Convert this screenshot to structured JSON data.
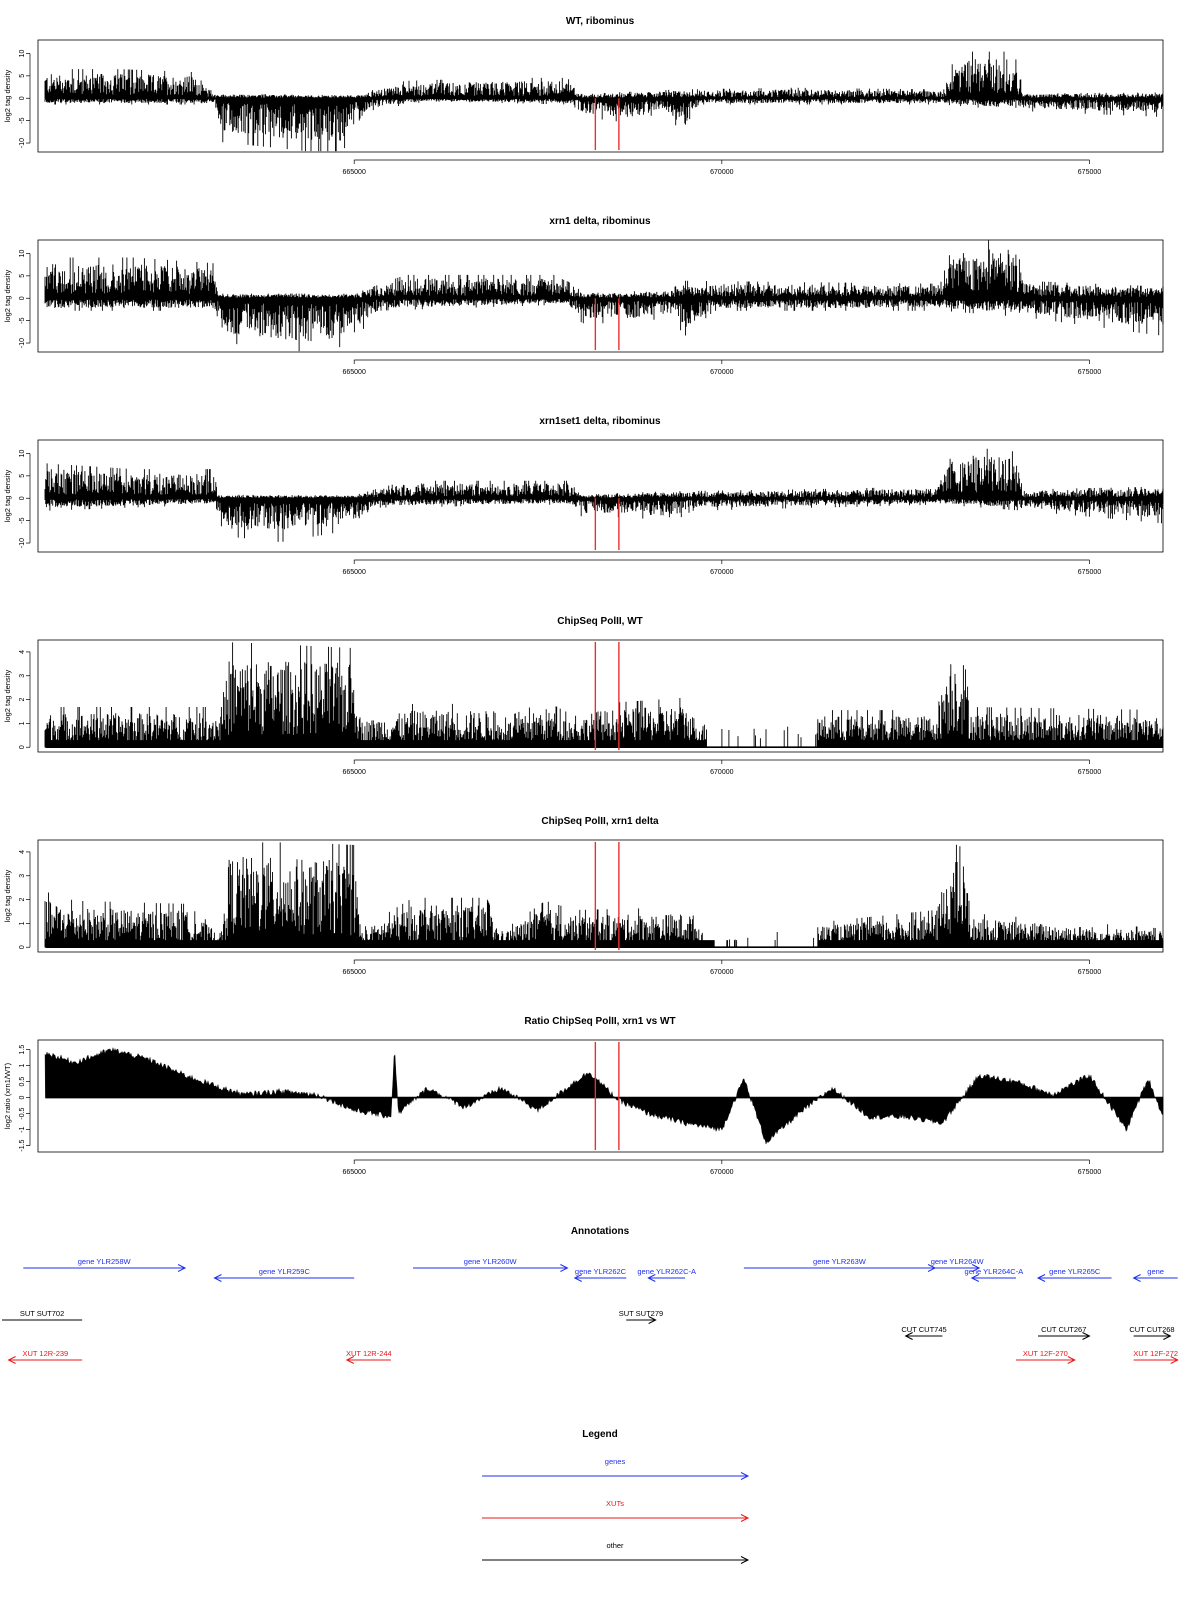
{
  "colors": {
    "signal": "#000000",
    "marker": "#e8312f",
    "gene": "#1f2ff0",
    "xut": "#e8181a",
    "other": "#000000"
  },
  "shared_axis": {
    "xlim": [
      660700,
      676000
    ],
    "x_ticks": [
      665000,
      670000,
      675000
    ],
    "x_tick_labels": [
      "665000",
      "670000",
      "675000"
    ],
    "marker_positions": [
      668280,
      668600
    ]
  },
  "chart_data": [
    {
      "type": "bar",
      "title": "WT, ribominus",
      "ylabel": "log2 tag density",
      "ylim": [
        -12,
        13
      ],
      "y_ticks": [
        -10,
        -5,
        0,
        5,
        10
      ],
      "y_tick_labels": [
        "-10",
        "-5",
        "0",
        "5",
        "10"
      ],
      "x_range": [
        660800,
        676000
      ],
      "profile_positive": [
        [
          660800,
          5
        ],
        [
          661800,
          5
        ],
        [
          662800,
          4.5
        ],
        [
          663100,
          0.8
        ],
        [
          665000,
          0.5
        ],
        [
          665700,
          3
        ],
        [
          667200,
          3.5
        ],
        [
          667900,
          3.5
        ],
        [
          668100,
          0.7
        ],
        [
          669400,
          1.5
        ],
        [
          671000,
          1.8
        ],
        [
          673000,
          1.5
        ],
        [
          673200,
          8
        ],
        [
          674000,
          8
        ],
        [
          674100,
          0.8
        ],
        [
          676000,
          1
        ]
      ],
      "profile_negative": [
        [
          660800,
          -1
        ],
        [
          663100,
          -1
        ],
        [
          663200,
          -7
        ],
        [
          664000,
          -8
        ],
        [
          664800,
          -9
        ],
        [
          665000,
          -6
        ],
        [
          665200,
          -2
        ],
        [
          666000,
          -0.5
        ],
        [
          667900,
          -1
        ],
        [
          668100,
          -3
        ],
        [
          668800,
          -4
        ],
        [
          669200,
          -2
        ],
        [
          669500,
          -6
        ],
        [
          669700,
          -1
        ],
        [
          673000,
          -1
        ],
        [
          674000,
          -2
        ],
        [
          676000,
          -3
        ]
      ]
    },
    {
      "type": "bar",
      "title": "xrn1 delta, ribominus",
      "ylabel": "log2 tag density",
      "ylim": [
        -12,
        13
      ],
      "y_ticks": [
        -10,
        -5,
        0,
        5,
        10
      ],
      "y_tick_labels": [
        "-10",
        "-5",
        "0",
        "5",
        "10"
      ],
      "x_range": [
        660800,
        676000
      ],
      "profile_positive": [
        [
          660800,
          7
        ],
        [
          662000,
          7
        ],
        [
          663100,
          6
        ],
        [
          663150,
          0.8
        ],
        [
          665000,
          0.8
        ],
        [
          665700,
          4
        ],
        [
          667900,
          4
        ],
        [
          668100,
          0.8
        ],
        [
          669300,
          1.5
        ],
        [
          669500,
          3
        ],
        [
          672900,
          2.5
        ],
        [
          673200,
          10
        ],
        [
          674000,
          10
        ],
        [
          674100,
          3
        ],
        [
          676000,
          2
        ]
      ],
      "profile_negative": [
        [
          660800,
          -2
        ],
        [
          663100,
          -2
        ],
        [
          663200,
          -7
        ],
        [
          664500,
          -9
        ],
        [
          665000,
          -7
        ],
        [
          665300,
          -2
        ],
        [
          667900,
          -1
        ],
        [
          668100,
          -4
        ],
        [
          668800,
          -4
        ],
        [
          669300,
          -3
        ],
        [
          669500,
          -6
        ],
        [
          669900,
          -2
        ],
        [
          673000,
          -2
        ],
        [
          674100,
          -3
        ],
        [
          676000,
          -6
        ]
      ]
    },
    {
      "type": "bar",
      "title": "xrn1set1 delta, ribominus",
      "ylabel": "log2 tag density",
      "ylim": [
        -12,
        13
      ],
      "y_ticks": [
        -10,
        -5,
        0,
        5,
        10
      ],
      "y_tick_labels": [
        "-10",
        "-5",
        "0",
        "5",
        "10"
      ],
      "x_range": [
        660800,
        676000
      ],
      "profile_positive": [
        [
          660800,
          6
        ],
        [
          662000,
          5
        ],
        [
          663100,
          5
        ],
        [
          663150,
          0.6
        ],
        [
          665000,
          0.5
        ],
        [
          665700,
          3
        ],
        [
          667900,
          3
        ],
        [
          668100,
          0.6
        ],
        [
          669300,
          1.2
        ],
        [
          671000,
          1.5
        ],
        [
          672900,
          2
        ],
        [
          673200,
          9
        ],
        [
          674000,
          8
        ],
        [
          674100,
          1.5
        ],
        [
          676000,
          2
        ]
      ],
      "profile_negative": [
        [
          660800,
          -2
        ],
        [
          663100,
          -1
        ],
        [
          663200,
          -6
        ],
        [
          664000,
          -7
        ],
        [
          665000,
          -5
        ],
        [
          665300,
          -1.5
        ],
        [
          667900,
          -1
        ],
        [
          668100,
          -3
        ],
        [
          668800,
          -3
        ],
        [
          669300,
          -4
        ],
        [
          669600,
          -2
        ],
        [
          673000,
          -1
        ],
        [
          674100,
          -2
        ],
        [
          676000,
          -4
        ]
      ]
    },
    {
      "type": "bar",
      "title": "ChipSeq PolII, WT",
      "ylabel": "log2 tag density",
      "ylim": [
        -0.2,
        4.5
      ],
      "y_ticks": [
        0,
        1,
        2,
        3,
        4
      ],
      "y_tick_labels": [
        "0",
        "1",
        "2",
        "3",
        "4"
      ],
      "x_range": [
        660800,
        676000
      ],
      "profile_positive": [
        [
          660800,
          1.3
        ],
        [
          663200,
          1.3
        ],
        [
          663300,
          3.4
        ],
        [
          665000,
          3.2
        ],
        [
          665100,
          1.0
        ],
        [
          665800,
          1.4
        ],
        [
          666800,
          1.4
        ],
        [
          667000,
          0.9
        ],
        [
          667600,
          1.5
        ],
        [
          668000,
          1.0
        ],
        [
          668300,
          1.4
        ],
        [
          669500,
          1.6
        ],
        [
          669700,
          0.9
        ],
        [
          671200,
          1.2
        ],
        [
          672900,
          1.2
        ],
        [
          673100,
          3.6
        ],
        [
          673300,
          3.4
        ],
        [
          673400,
          1.3
        ],
        [
          676000,
          1.2
        ]
      ],
      "gaps": [
        [
          669800,
          671300
        ]
      ]
    },
    {
      "type": "bar",
      "title": "ChipSeq PolII, xrn1 delta",
      "ylabel": "log2 tag density",
      "ylim": [
        -0.2,
        4.5
      ],
      "y_ticks": [
        0,
        1,
        2,
        3,
        4
      ],
      "y_tick_labels": [
        "0",
        "1",
        "2",
        "3",
        "4"
      ],
      "x_range": [
        660800,
        676000
      ],
      "profile_positive": [
        [
          660800,
          1.8
        ],
        [
          661200,
          1.5
        ],
        [
          662700,
          1.4
        ],
        [
          663200,
          0.5
        ],
        [
          663300,
          3.5
        ],
        [
          665000,
          3.3
        ],
        [
          665100,
          0.6
        ],
        [
          665800,
          1.6
        ],
        [
          666800,
          1.6
        ],
        [
          667000,
          0.5
        ],
        [
          667600,
          1.5
        ],
        [
          668000,
          1.2
        ],
        [
          669600,
          1.3
        ],
        [
          669800,
          0.2
        ],
        [
          671300,
          0.8
        ],
        [
          672900,
          1.2
        ],
        [
          673100,
          3.4
        ],
        [
          673300,
          3.2
        ],
        [
          673400,
          1.1
        ],
        [
          676000,
          0.6
        ]
      ],
      "gaps": [
        [
          669900,
          671300
        ]
      ]
    },
    {
      "type": "area",
      "title": "Ratio ChipSeq PolII, xrn1 vs WT",
      "ylabel": "log2 ratio (xrn1/WT)",
      "ylim": [
        -1.7,
        1.8
      ],
      "y_ticks": [
        -1.5,
        -1,
        -0.5,
        0,
        0.5,
        1,
        1.5
      ],
      "y_tick_labels": [
        "-1.5",
        "-1",
        "-0.5",
        "0",
        "0.5",
        "1",
        "1.5"
      ],
      "x_range": [
        660800,
        676000
      ],
      "curve": [
        [
          660800,
          1.4
        ],
        [
          661200,
          1.1
        ],
        [
          661700,
          1.5
        ],
        [
          662200,
          1.2
        ],
        [
          662700,
          0.7
        ],
        [
          663200,
          0.3
        ],
        [
          663500,
          0.1
        ],
        [
          664000,
          0.2
        ],
        [
          664500,
          0.1
        ],
        [
          665000,
          -0.4
        ],
        [
          665500,
          -0.6
        ],
        [
          665550,
          1.6
        ],
        [
          665600,
          -0.5
        ],
        [
          666000,
          0.3
        ],
        [
          666500,
          -0.3
        ],
        [
          667000,
          0.3
        ],
        [
          667500,
          -0.4
        ],
        [
          668000,
          0.5
        ],
        [
          668200,
          0.8
        ],
        [
          668600,
          -0.1
        ],
        [
          669000,
          -0.5
        ],
        [
          669500,
          -0.8
        ],
        [
          670000,
          -1.0
        ],
        [
          670300,
          0.6
        ],
        [
          670600,
          -1.4
        ],
        [
          671000,
          -0.6
        ],
        [
          671500,
          0.3
        ],
        [
          672000,
          -0.6
        ],
        [
          672500,
          -0.6
        ],
        [
          673000,
          -0.8
        ],
        [
          673500,
          0.7
        ],
        [
          674000,
          0.5
        ],
        [
          674500,
          0.1
        ],
        [
          675000,
          0.7
        ],
        [
          675500,
          -1.0
        ],
        [
          675800,
          0.6
        ],
        [
          676000,
          -0.6
        ]
      ]
    }
  ],
  "annotations": {
    "title": "Annotations",
    "items": [
      {
        "label": "gene YLR258W",
        "kind": "gene",
        "dir": "right",
        "x_start": 660500,
        "x_end": 662700,
        "row": 0
      },
      {
        "label": "gene YLR259C",
        "kind": "gene",
        "dir": "left",
        "x_start": 663100,
        "x_end": 665000,
        "row": 1
      },
      {
        "label": "gene YLR260W",
        "kind": "gene",
        "dir": "right",
        "x_start": 665800,
        "x_end": 667900,
        "row": 0
      },
      {
        "label": "gene YLR262C",
        "kind": "gene",
        "dir": "left",
        "x_start": 668000,
        "x_end": 668700,
        "row": 1
      },
      {
        "label": "gene YLR262C-A",
        "kind": "gene",
        "dir": "left",
        "x_start": 669000,
        "x_end": 669500,
        "row": 1
      },
      {
        "label": "gene YLR263W",
        "kind": "gene",
        "dir": "right",
        "x_start": 670300,
        "x_end": 672900,
        "row": 0
      },
      {
        "label": "gene YLR264W",
        "kind": "gene",
        "dir": "right",
        "x_start": 672900,
        "x_end": 673500,
        "row": 0
      },
      {
        "label": "gene YLR264C-A",
        "kind": "gene",
        "dir": "left",
        "x_start": 673400,
        "x_end": 674000,
        "row": 1
      },
      {
        "label": "gene YLR265C",
        "kind": "gene",
        "dir": "left",
        "x_start": 674300,
        "x_end": 675300,
        "row": 1
      },
      {
        "label": "gene",
        "kind": "gene",
        "dir": "left",
        "x_start": 675600,
        "x_end": 676200,
        "row": 1
      },
      {
        "label": "SUT SUT702",
        "kind": "other",
        "dir": "none",
        "x_start": 660200,
        "x_end": 661300,
        "row": 2
      },
      {
        "label": "SUT SUT279",
        "kind": "other",
        "dir": "right",
        "x_start": 668700,
        "x_end": 669100,
        "row": 2
      },
      {
        "label": "CUT CUT745",
        "kind": "other",
        "dir": "left",
        "x_start": 672500,
        "x_end": 673000,
        "row": 3
      },
      {
        "label": "CUT CUT267",
        "kind": "other",
        "dir": "right",
        "x_start": 674300,
        "x_end": 675000,
        "row": 3
      },
      {
        "label": "CUT CUT268",
        "kind": "other",
        "dir": "right",
        "x_start": 675600,
        "x_end": 676100,
        "row": 3
      },
      {
        "label": "XUT 12R-239",
        "kind": "xut",
        "dir": "left",
        "x_start": 660300,
        "x_end": 661300,
        "row": 4
      },
      {
        "label": "XUT 12R-244",
        "kind": "xut",
        "dir": "left",
        "x_start": 664900,
        "x_end": 665500,
        "row": 4
      },
      {
        "label": "XUT 12F-270",
        "kind": "xut",
        "dir": "right",
        "x_start": 674000,
        "x_end": 674800,
        "row": 4
      },
      {
        "label": "XUT 12F-272",
        "kind": "xut",
        "dir": "right",
        "x_start": 675600,
        "x_end": 676200,
        "row": 4
      }
    ]
  },
  "legend": {
    "title": "Legend",
    "entries": [
      {
        "label": "genes",
        "kind": "gene"
      },
      {
        "label": "XUTs",
        "kind": "xut"
      },
      {
        "label": "other",
        "kind": "other"
      }
    ]
  }
}
